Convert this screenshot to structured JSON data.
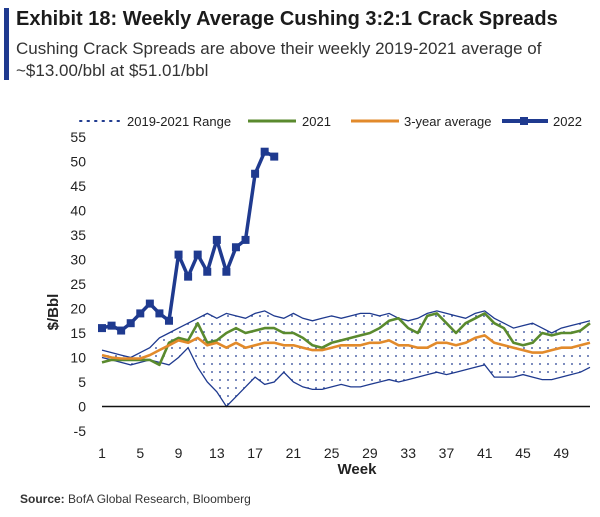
{
  "header": {
    "title": "Exhibit 18: Weekly Average Cushing 3:2:1 Crack Spreads",
    "subtitle": "Cushing Crack Spreads are above their weekly 2019-2021 average of ~$13.00/bbl at $51.01/bbl"
  },
  "footer": {
    "source_label": "Source:",
    "source_text": "BofA Global Research, Bloomberg"
  },
  "colors": {
    "range": "#1f3a8f",
    "y2021": "#5a8a2e",
    "avg": "#e28a2b",
    "y2022": "#1f3a8f",
    "accent": "#1f3a8f"
  },
  "chart_data": {
    "type": "line",
    "xlabel": "Week",
    "ylabel": "$/Bbl",
    "xlim": [
      1,
      52
    ],
    "ylim": [
      -5,
      55
    ],
    "x_ticks": [
      1,
      5,
      9,
      13,
      17,
      21,
      25,
      29,
      33,
      37,
      41,
      45,
      49
    ],
    "y_ticks": [
      -5,
      0,
      5,
      10,
      15,
      20,
      25,
      30,
      35,
      40,
      45,
      50,
      55
    ],
    "legend_position": "top",
    "range_band": {
      "name": "2019-2021 Range",
      "upper": [
        11.5,
        11,
        10.5,
        10,
        11,
        12,
        14,
        15,
        16,
        17,
        18,
        19,
        18,
        19,
        18.5,
        18,
        19,
        19.5,
        18.5,
        18,
        19,
        18,
        17.5,
        18,
        18.5,
        18,
        18.5,
        19,
        19,
        18.5,
        19,
        18,
        17.5,
        18,
        19,
        19.5,
        19,
        18.5,
        18,
        19,
        19.5,
        18,
        17,
        16,
        16.5,
        17,
        16,
        15,
        16,
        16.5,
        17,
        17.5
      ],
      "lower": [
        10,
        9.5,
        9,
        8.5,
        9,
        9.5,
        9,
        8.5,
        10,
        12,
        8,
        5,
        3,
        0,
        2,
        4,
        6,
        4.5,
        5,
        7,
        5,
        4,
        3.5,
        3.5,
        4,
        4.5,
        4,
        4,
        4.5,
        5,
        5.5,
        5,
        5.5,
        6,
        6.5,
        7,
        6.5,
        7,
        7.5,
        8,
        8.5,
        6,
        6,
        6,
        6.5,
        6,
        5.5,
        5.5,
        6,
        6.5,
        7,
        8
      ]
    },
    "series": [
      {
        "name": "2021",
        "x_start": 1,
        "values": [
          9,
          9.5,
          9.5,
          9.5,
          9.5,
          9.5,
          8.5,
          13,
          14,
          13.5,
          17,
          13,
          13.5,
          15,
          16,
          15,
          15.5,
          16,
          16,
          15,
          15,
          14,
          12.5,
          12,
          13,
          13.5,
          14,
          14.5,
          15,
          16,
          17.5,
          18,
          16,
          15,
          18.5,
          19,
          17,
          15,
          17,
          18,
          19,
          17,
          16,
          13,
          12.5,
          13,
          15,
          14.5,
          15,
          15,
          15.5,
          17
        ]
      },
      {
        "name": "3-year average",
        "x_start": 1,
        "values": [
          10.5,
          10,
          9.8,
          9.8,
          9.8,
          10.5,
          11.5,
          12.5,
          13.5,
          13,
          14,
          12.5,
          13,
          12,
          13,
          12,
          12.5,
          13,
          13,
          12.5,
          12.5,
          12,
          11.5,
          11.5,
          12,
          12.5,
          12.5,
          12.5,
          13,
          13,
          13.5,
          12.5,
          12.5,
          12,
          12,
          13,
          13,
          12.5,
          13,
          14,
          14.5,
          13,
          12.5,
          12,
          11.5,
          11,
          11,
          11.5,
          12,
          12,
          12.5,
          13
        ]
      },
      {
        "name": "2022",
        "x_start": 1,
        "values": [
          16,
          16.5,
          15.5,
          17,
          19,
          21,
          19,
          17.5,
          31,
          26.5,
          31,
          27.5,
          34,
          27.5,
          32.5,
          34,
          47.5,
          52,
          51
        ]
      }
    ]
  }
}
